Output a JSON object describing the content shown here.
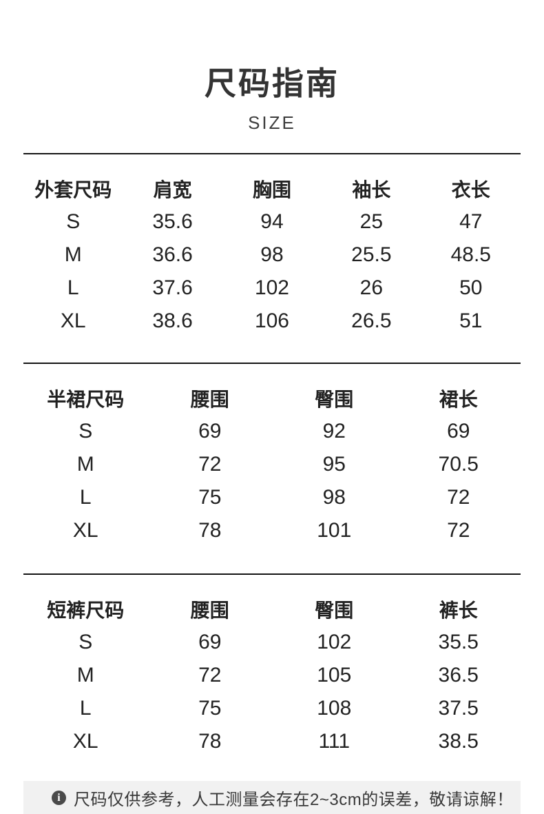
{
  "page": {
    "title": "尺码指南",
    "subtitle": "SIZE"
  },
  "tables": [
    {
      "name": "jacket",
      "headers": [
        "外套尺码",
        "肩宽",
        "胸围",
        "袖长",
        "衣长"
      ],
      "rows": [
        [
          "S",
          "35.6",
          "94",
          "25",
          "47"
        ],
        [
          "M",
          "36.6",
          "98",
          "25.5",
          "48.5"
        ],
        [
          "L",
          "37.6",
          "102",
          "26",
          "50"
        ],
        [
          "XL",
          "38.6",
          "106",
          "26.5",
          "51"
        ]
      ]
    },
    {
      "name": "skirt",
      "headers": [
        "半裙尺码",
        "腰围",
        "臀围",
        "裙长"
      ],
      "rows": [
        [
          "S",
          "69",
          "92",
          "69"
        ],
        [
          "M",
          "72",
          "95",
          "70.5"
        ],
        [
          "L",
          "75",
          "98",
          "72"
        ],
        [
          "XL",
          "78",
          "101",
          "72"
        ]
      ]
    },
    {
      "name": "shorts",
      "headers": [
        "短裤尺码",
        "腰围",
        "臀围",
        "裤长"
      ],
      "rows": [
        [
          "S",
          "69",
          "102",
          "35.5"
        ],
        [
          "M",
          "72",
          "105",
          "36.5"
        ],
        [
          "L",
          "75",
          "108",
          "37.5"
        ],
        [
          "XL",
          "78",
          "111",
          "38.5"
        ]
      ]
    }
  ],
  "footer": {
    "icon": "info-icon",
    "note": "尺码仅供参考，人工测量会存在2~3cm的误差，敬请谅解！"
  },
  "colors": {
    "text": "#222222",
    "title": "#333333",
    "divider": "#141414",
    "footer_bg": "#f1f1f1",
    "footer_text": "#383838",
    "icon_bg": "#4a4a4a"
  }
}
